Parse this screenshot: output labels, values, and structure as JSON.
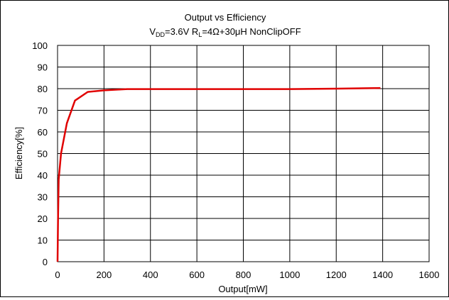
{
  "chart_data": {
    "type": "line",
    "title": "Output vs Efficiency",
    "subtitle": {
      "parts": [
        {
          "text": "V",
          "sub": false
        },
        {
          "text": "DD",
          "sub": true
        },
        {
          "text": "=3.6V R",
          "sub": false
        },
        {
          "text": "L",
          "sub": true
        },
        {
          "text": "=4Ω+30μH NonClipOFF",
          "sub": false
        }
      ]
    },
    "xlabel": "Output[mW]",
    "ylabel": "Efficiency[%]",
    "xlim": [
      0,
      1600
    ],
    "ylim": [
      0,
      100
    ],
    "xticks": [
      0,
      200,
      400,
      600,
      800,
      1000,
      1200,
      1400,
      1600
    ],
    "yticks": [
      0,
      10,
      20,
      30,
      40,
      50,
      60,
      70,
      80,
      90,
      100
    ],
    "grid": true,
    "legend": "none",
    "series": [
      {
        "color": "#e00000",
        "points": [
          [
            0,
            0
          ],
          [
            2,
            20
          ],
          [
            5,
            38
          ],
          [
            15,
            50
          ],
          [
            40,
            64
          ],
          [
            75,
            74.5
          ],
          [
            130,
            78.5
          ],
          [
            200,
            79.2
          ],
          [
            300,
            79.8
          ],
          [
            600,
            79.8
          ],
          [
            1000,
            79.8
          ],
          [
            1200,
            80.0
          ],
          [
            1390,
            80.3
          ]
        ]
      }
    ]
  }
}
